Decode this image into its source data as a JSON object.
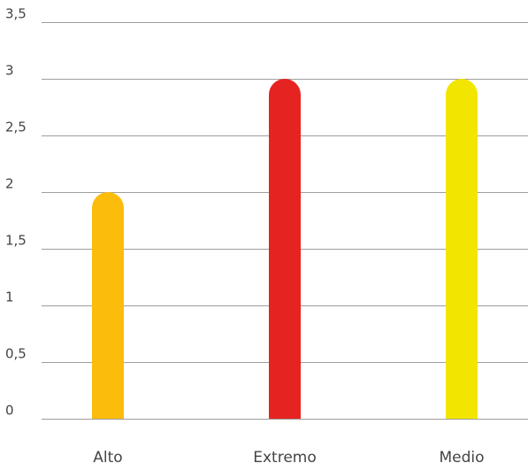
{
  "chart_data": {
    "type": "bar",
    "title": "",
    "xlabel": "",
    "ylabel": "",
    "categories": [
      "Alto",
      "Extremo",
      "Medio"
    ],
    "values": [
      2,
      3,
      3
    ],
    "colors": [
      "#fbbc0c",
      "#e52421",
      "#f2e500"
    ],
    "ylim": [
      0,
      3.5
    ],
    "yticks": [
      0,
      0.5,
      1,
      1.5,
      2,
      2.5,
      3,
      3.5
    ],
    "ytick_labels": [
      "0",
      "0,5",
      "1",
      "1,5",
      "2",
      "2,5",
      "3",
      "3,5"
    ],
    "grid": true,
    "legend": "none",
    "bar_style": "rounded-top"
  }
}
